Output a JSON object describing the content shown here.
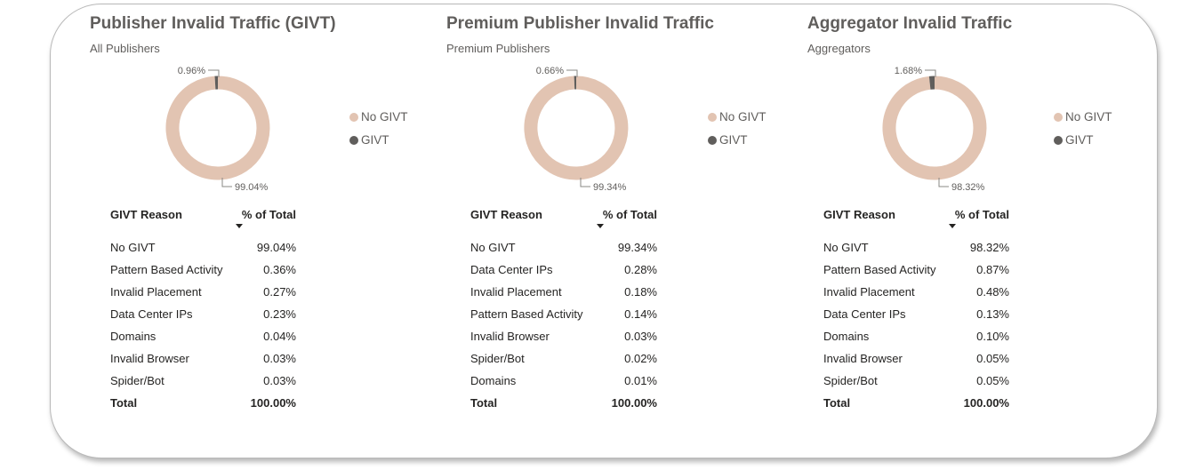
{
  "chart_data": [
    {
      "type": "pie",
      "title": "Publisher Invalid Traffic (GIVT)",
      "subtitle": "All Publishers",
      "series": [
        {
          "name": "No GIVT",
          "value": 99.04,
          "label": "99.04%"
        },
        {
          "name": "GIVT",
          "value": 0.96,
          "label": "0.96%"
        }
      ],
      "legend": {
        "placement": "right",
        "entries": [
          "No GIVT",
          "GIVT"
        ]
      },
      "table": {
        "headers": [
          "GIVT Reason",
          "% of Total"
        ],
        "sorted_column": "% of Total",
        "rows": [
          [
            "No GIVT",
            "99.04%"
          ],
          [
            "Pattern Based Activity",
            "0.36%"
          ],
          [
            "Invalid Placement",
            "0.27%"
          ],
          [
            "Data Center IPs",
            "0.23%"
          ],
          [
            "Domains",
            "0.04%"
          ],
          [
            "Invalid Browser",
            "0.03%"
          ],
          [
            "Spider/Bot",
            "0.03%"
          ]
        ],
        "total": [
          "Total",
          "100.00%"
        ]
      }
    },
    {
      "type": "pie",
      "title": "Premium Publisher Invalid Traffic",
      "subtitle": "Premium Publishers",
      "series": [
        {
          "name": "No GIVT",
          "value": 99.34,
          "label": "99.34%"
        },
        {
          "name": "GIVT",
          "value": 0.66,
          "label": "0.66%"
        }
      ],
      "legend": {
        "placement": "right",
        "entries": [
          "No GIVT",
          "GIVT"
        ]
      },
      "table": {
        "headers": [
          "GIVT Reason",
          "% of Total"
        ],
        "sorted_column": "% of Total",
        "rows": [
          [
            "No GIVT",
            "99.34%"
          ],
          [
            "Data Center IPs",
            "0.28%"
          ],
          [
            "Invalid Placement",
            "0.18%"
          ],
          [
            "Pattern Based Activity",
            "0.14%"
          ],
          [
            "Invalid Browser",
            "0.03%"
          ],
          [
            "Spider/Bot",
            "0.02%"
          ],
          [
            "Domains",
            "0.01%"
          ]
        ],
        "total": [
          "Total",
          "100.00%"
        ]
      }
    },
    {
      "type": "pie",
      "title": "Aggregator Invalid Traffic",
      "subtitle": "Aggregators",
      "series": [
        {
          "name": "No GIVT",
          "value": 98.32,
          "label": "98.32%"
        },
        {
          "name": "GIVT",
          "value": 1.68,
          "label": "1.68%"
        }
      ],
      "legend": {
        "placement": "right",
        "entries": [
          "No GIVT",
          "GIVT"
        ]
      },
      "table": {
        "headers": [
          "GIVT Reason",
          "% of Total"
        ],
        "sorted_column": "% of Total",
        "rows": [
          [
            "No GIVT",
            "98.32%"
          ],
          [
            "Pattern Based Activity",
            "0.87%"
          ],
          [
            "Invalid Placement",
            "0.48%"
          ],
          [
            "Data Center IPs",
            "0.13%"
          ],
          [
            "Domains",
            "0.10%"
          ],
          [
            "Invalid Browser",
            "0.05%"
          ],
          [
            "Spider/Bot",
            "0.05%"
          ]
        ],
        "total": [
          "Total",
          "100.00%"
        ]
      }
    }
  ],
  "colors": {
    "no_givt": "#e2c4b2",
    "givt": "#605e5c",
    "leader_line": "#8a8886"
  }
}
